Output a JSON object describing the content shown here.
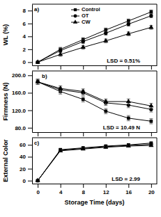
{
  "chart_data": [
    {
      "type": "line",
      "ylabel": "WL (%)",
      "annotations": [
        "a)",
        "LSD = 0.51%"
      ],
      "x": [
        0,
        4,
        8,
        12,
        16,
        20
      ],
      "xlim": [
        -1,
        21
      ],
      "xticks": [
        0,
        4,
        8,
        12,
        16,
        20
      ],
      "ylim": [
        -0.5,
        9
      ],
      "yticks": [
        0,
        2,
        4,
        6,
        8
      ],
      "tick_labels": "y",
      "legend": "top-left",
      "series": [
        {
          "name": "Control",
          "color": "#000000",
          "marker": "square",
          "values": [
            0,
            2.0,
            3.5,
            5.0,
            6.4,
            7.8
          ],
          "errors": [
            0.1,
            0.3,
            0.3,
            0.3,
            0.3,
            0.3
          ]
        },
        {
          "name": "OT",
          "color": "#000000",
          "marker": "circle",
          "values": [
            0,
            1.8,
            3.2,
            4.5,
            5.9,
            7.2
          ],
          "errors": [
            0.1,
            0.3,
            0.3,
            0.3,
            0.3,
            0.3
          ]
        },
        {
          "name": "CW",
          "color": "#000000",
          "marker": "triangle",
          "values": [
            0,
            1.2,
            2.3,
            3.3,
            4.4,
            5.4
          ],
          "errors": [
            0.1,
            0.3,
            0.3,
            0.3,
            0.3,
            0.3
          ]
        }
      ]
    },
    {
      "type": "line",
      "ylabel": "Firmness (N)",
      "annotations": [
        "b)",
        "LSD = 10.49 N"
      ],
      "x": [
        0,
        4,
        8,
        12,
        16,
        20
      ],
      "xlim": [
        -1,
        21
      ],
      "xticks": [
        0,
        4,
        8,
        12,
        16,
        20
      ],
      "ylim": [
        70,
        210
      ],
      "yticks": [
        {
          "value": 80,
          "label": "80.0"
        },
        {
          "value": 120,
          "label": "120.0"
        },
        {
          "value": 160,
          "label": "160.0"
        },
        {
          "value": 200,
          "label": "200.0"
        }
      ],
      "tick_labels": "y",
      "series": [
        {
          "color": "#000000",
          "marker": "square",
          "values": [
            185,
            163,
            145,
            118,
            102,
            95
          ],
          "errors": [
            6,
            6,
            6,
            6,
            6,
            6
          ]
        },
        {
          "color": "#000000",
          "marker": "circle",
          "values": [
            185,
            167,
            160,
            137,
            132,
            122
          ],
          "errors": [
            6,
            6,
            6,
            6,
            6,
            6
          ]
        },
        {
          "color": "#000000",
          "marker": "triangle",
          "values": [
            185,
            170,
            163,
            140,
            140,
            130
          ],
          "errors": [
            6,
            6,
            6,
            6,
            6,
            6
          ]
        }
      ]
    },
    {
      "type": "line",
      "ylabel": "External Color",
      "xlabel": "Storage Time (days)",
      "annotations": [
        "c)",
        "LSD = 2.99"
      ],
      "x": [
        0,
        4,
        8,
        12,
        16,
        20
      ],
      "xlim": [
        -1,
        21
      ],
      "xticks": [
        0,
        4,
        8,
        12,
        16,
        20
      ],
      "ylim": [
        -5,
        72
      ],
      "yticks": [
        0,
        20,
        40,
        60
      ],
      "series": [
        {
          "color": "#000000",
          "marker": "square",
          "values": [
            0,
            52,
            55,
            58,
            60,
            63
          ],
          "errors": [
            1,
            1.5,
            1.5,
            1.5,
            1.5,
            1.5
          ]
        },
        {
          "color": "#000000",
          "marker": "circle",
          "values": [
            0,
            51,
            54,
            57,
            59,
            61
          ],
          "errors": [
            1,
            1.5,
            1.5,
            1.5,
            1.5,
            1.5
          ]
        },
        {
          "color": "#000000",
          "marker": "triangle",
          "values": [
            0,
            50,
            53,
            56,
            58,
            59
          ],
          "errors": [
            1,
            1.5,
            1.5,
            1.5,
            1.5,
            1.5
          ]
        }
      ]
    }
  ]
}
